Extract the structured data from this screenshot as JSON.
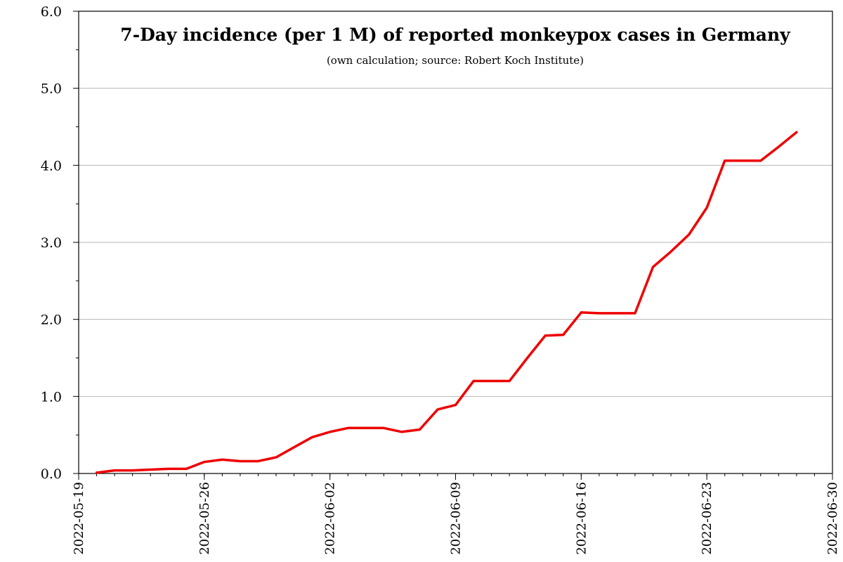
{
  "chart_data": {
    "type": "line",
    "title": "7-Day incidence (per 1 M) of reported monkeypox cases in Germany",
    "subtitle": "(own calculation; source: Robert Koch Institute)",
    "xlabel": "",
    "ylabel": "",
    "xlim": [
      "2022-05-19",
      "2022-06-30"
    ],
    "ylim": [
      0,
      6
    ],
    "x_ticks": [
      "2022-05-19",
      "2022-05-26",
      "2022-06-02",
      "2022-06-09",
      "2022-06-16",
      "2022-06-23",
      "2022-06-30"
    ],
    "y_ticks": [
      "0.0",
      "1.0",
      "2.0",
      "3.0",
      "4.0",
      "5.0",
      "6.0"
    ],
    "grid": "horizontal",
    "line_color": "#ee0000",
    "series": [
      {
        "x": [
          "2022-05-20",
          "2022-05-21",
          "2022-05-22",
          "2022-05-23",
          "2022-05-24",
          "2022-05-25",
          "2022-05-26",
          "2022-05-27",
          "2022-05-28",
          "2022-05-29",
          "2022-05-30",
          "2022-05-31",
          "2022-06-01",
          "2022-06-02",
          "2022-06-03",
          "2022-06-04",
          "2022-06-05",
          "2022-06-06",
          "2022-06-07",
          "2022-06-08",
          "2022-06-09",
          "2022-06-10",
          "2022-06-11",
          "2022-06-12",
          "2022-06-13",
          "2022-06-14",
          "2022-06-15",
          "2022-06-16",
          "2022-06-17",
          "2022-06-18",
          "2022-06-19",
          "2022-06-20",
          "2022-06-21",
          "2022-06-22",
          "2022-06-23",
          "2022-06-24",
          "2022-06-25",
          "2022-06-26",
          "2022-06-27",
          "2022-06-28"
        ],
        "values": [
          0.01,
          0.04,
          0.04,
          0.05,
          0.06,
          0.06,
          0.15,
          0.18,
          0.16,
          0.16,
          0.21,
          0.34,
          0.47,
          0.54,
          0.59,
          0.59,
          0.59,
          0.54,
          0.57,
          0.83,
          0.89,
          1.2,
          1.2,
          1.2,
          1.5,
          1.79,
          1.8,
          2.09,
          2.08,
          2.08,
          2.08,
          2.68,
          2.88,
          3.1,
          3.45,
          4.06,
          4.06,
          4.06,
          4.24,
          4.43
        ]
      }
    ]
  }
}
